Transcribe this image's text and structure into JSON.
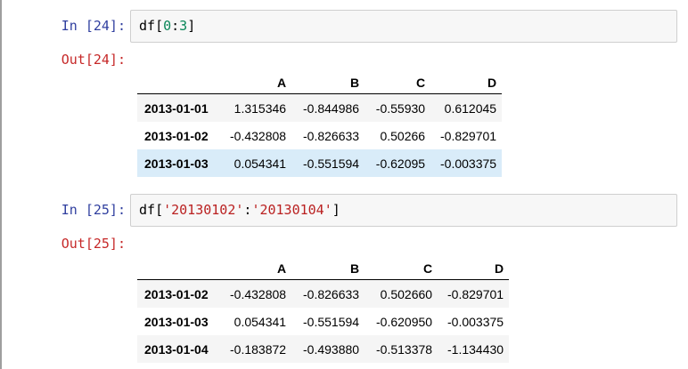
{
  "cells": [
    {
      "in_prompt": "In [24]:",
      "code": {
        "var": "df",
        "open": "[",
        "a": "0",
        "colon": ":",
        "b": "3",
        "close": "]"
      },
      "out_prompt": "Out[24]:",
      "table": {
        "columns": [
          "A",
          "B",
          "C",
          "D"
        ],
        "rows": [
          {
            "index": "2013-01-01",
            "values": [
              "1.315346",
              "-0.844986",
              "-0.55930",
              "0.612045"
            ]
          },
          {
            "index": "2013-01-02",
            "values": [
              "-0.432808",
              "-0.826633",
              "0.50266",
              "-0.829701"
            ]
          },
          {
            "index": "2013-01-03",
            "values": [
              "0.054341",
              "-0.551594",
              "-0.62095",
              "-0.003375"
            ]
          }
        ]
      }
    },
    {
      "in_prompt": "In [25]:",
      "code": {
        "var": "df",
        "open": "[",
        "a": "'20130102'",
        "colon": ":",
        "b": "'20130104'",
        "close": "]"
      },
      "out_prompt": "Out[25]:",
      "table": {
        "columns": [
          "A",
          "B",
          "C",
          "D"
        ],
        "rows": [
          {
            "index": "2013-01-02",
            "values": [
              "-0.432808",
              "-0.826633",
              "0.502660",
              "-0.829701"
            ]
          },
          {
            "index": "2013-01-03",
            "values": [
              "0.054341",
              "-0.551594",
              "-0.620950",
              "-0.003375"
            ]
          },
          {
            "index": "2013-01-04",
            "values": [
              "-0.183872",
              "-0.493880",
              "-0.513378",
              "-1.134430"
            ]
          }
        ]
      }
    }
  ]
}
